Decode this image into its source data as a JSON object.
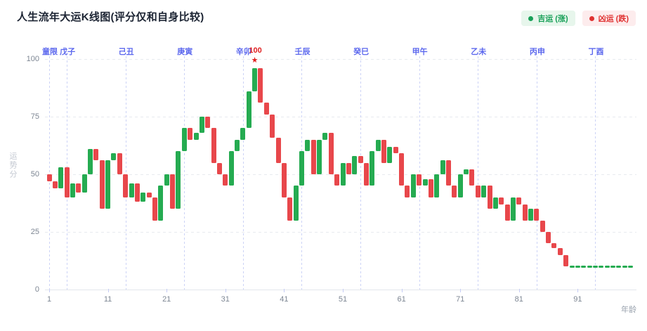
{
  "title": "人生流年大运K线图(评分仅和自身比较)",
  "legend": {
    "good": {
      "label": "吉运 (涨)",
      "text_color": "#18a058",
      "bg": "#e7f6ec",
      "dot": "#18a058"
    },
    "bad": {
      "label": "凶运 (跌)",
      "text_color": "#e03131",
      "bg": "#fdeced",
      "dot": "#e03131"
    }
  },
  "axes": {
    "y_title": "运势分",
    "x_title": "年龄",
    "y_ticks": [
      0,
      25,
      50,
      75,
      100
    ],
    "x_ticks": [
      1,
      11,
      21,
      31,
      41,
      51,
      61,
      71,
      81,
      91
    ],
    "y_range": [
      0,
      100
    ]
  },
  "periods": [
    {
      "label": "童限",
      "start_age": 1
    },
    {
      "label": "戊子",
      "start_age": 4
    },
    {
      "label": "己丑",
      "start_age": 14
    },
    {
      "label": "庚寅",
      "start_age": 24
    },
    {
      "label": "辛卯",
      "start_age": 34
    },
    {
      "label": "壬辰",
      "start_age": 44
    },
    {
      "label": "癸巳",
      "start_age": 54
    },
    {
      "label": "甲午",
      "start_age": 64
    },
    {
      "label": "乙未",
      "start_age": 74
    },
    {
      "label": "丙申",
      "start_age": 84
    },
    {
      "label": "丁酉",
      "start_age": 94
    }
  ],
  "peak_annotation": {
    "age": 36,
    "text": "100",
    "star": "★"
  },
  "chart_data": {
    "type": "candlestick",
    "x_unit": "age",
    "first_age": 1,
    "first_open": 50,
    "closes": [
      47,
      44,
      53,
      40,
      46,
      42,
      50,
      61,
      56,
      35,
      56,
      59,
      50,
      40,
      46,
      38,
      42,
      40,
      30,
      45,
      50,
      35,
      60,
      70,
      65,
      68,
      75,
      70,
      55,
      50,
      45,
      60,
      65,
      70,
      86,
      96,
      81,
      76,
      66,
      55,
      40,
      30,
      45,
      60,
      65,
      50,
      65,
      68,
      50,
      45,
      55,
      50,
      58,
      55,
      45,
      60,
      65,
      55,
      62,
      59,
      45,
      40,
      50,
      45,
      48,
      40,
      50,
      56,
      45,
      40,
      50,
      52,
      45,
      40,
      45,
      35,
      40,
      37,
      30,
      40,
      37,
      30,
      35,
      30,
      25,
      20,
      18,
      15,
      10,
      10,
      10,
      10,
      10,
      10,
      10,
      10,
      10,
      10,
      10,
      10
    ],
    "flat_doji_from_age": 90,
    "up_color": "#25ab51",
    "down_color": "#e8474b",
    "legend_position": "top-right",
    "grid": "horizontal-dashed",
    "ylim": [
      0,
      100
    ],
    "title": "人生流年大运K线图(评分仅和自身比较)",
    "xlabel": "年龄",
    "ylabel": "运势分"
  },
  "colors": {
    "title": "#1c2433",
    "period_label": "#5c68ee",
    "peak": "#e02020",
    "grid": "#e7eaef",
    "boundary_line": "#ccd3f6",
    "axis_text": "#7d8693"
  }
}
